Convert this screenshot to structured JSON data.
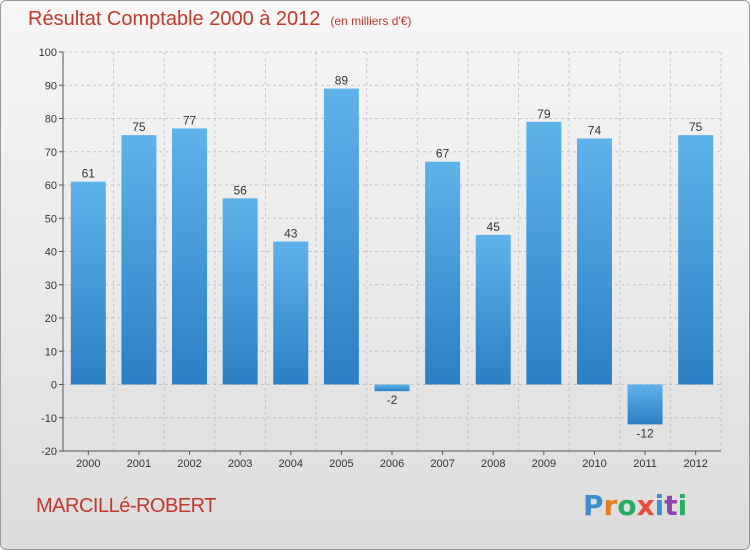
{
  "title": "Résultat Comptable 2000 à 2012",
  "unit_label": "(en milliers d'€)",
  "commune": "MARCILLé-ROBERT",
  "brand": {
    "letters": [
      "P",
      "r",
      "o",
      "x",
      "i",
      "t",
      "i"
    ],
    "colors": [
      "#3b8fd1",
      "#e67e22",
      "#27ae60",
      "#e74c3c",
      "#3b8fd1",
      "#8e44ad",
      "#27ae60"
    ]
  },
  "chart_data": {
    "type": "bar",
    "categories": [
      "2000",
      "2001",
      "2002",
      "2003",
      "2004",
      "2005",
      "2006",
      "2007",
      "2008",
      "2009",
      "2010",
      "2011",
      "2012"
    ],
    "values": [
      61,
      75,
      77,
      56,
      43,
      89,
      -2,
      67,
      45,
      79,
      74,
      -12,
      75
    ],
    "ylim": [
      -20,
      100
    ],
    "yticks": [
      -20,
      -10,
      0,
      10,
      20,
      30,
      40,
      50,
      60,
      70,
      80,
      90,
      100
    ],
    "grid": true,
    "bar_color": "#3a93d8"
  }
}
